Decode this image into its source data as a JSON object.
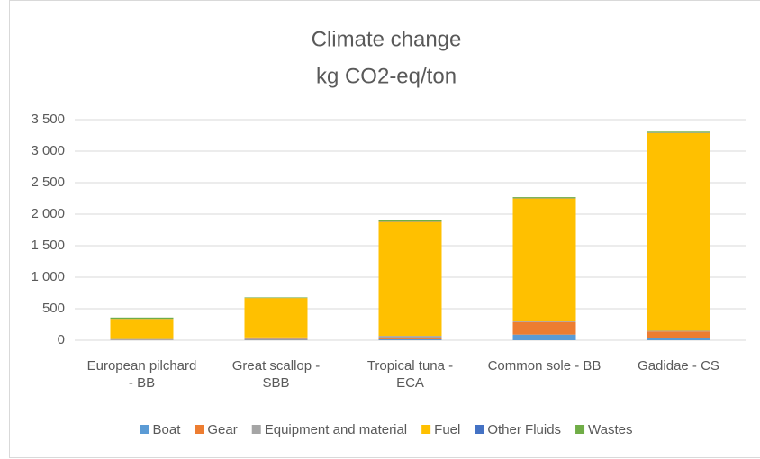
{
  "chart_data": {
    "type": "stacked_bar",
    "title": [
      "Climate change",
      "kg CO2-eq/ton"
    ],
    "categories": [
      "European pilchard - BB",
      "Great scallop - SBB",
      "Tropical tuna - ECA",
      "Common sole - BB",
      "Gadidae - CS"
    ],
    "series": [
      {
        "name": "Boat",
        "color": "#5b9bd5",
        "values": [
          5,
          10,
          15,
          90,
          40
        ]
      },
      {
        "name": "Gear",
        "color": "#ed7d31",
        "values": [
          5,
          10,
          20,
          200,
          100
        ]
      },
      {
        "name": "Equipment and material",
        "color": "#a5a5a5",
        "values": [
          10,
          25,
          35,
          10,
          10
        ]
      },
      {
        "name": "Fuel",
        "color": "#ffc000",
        "values": [
          320,
          625,
          1810,
          1950,
          3140
        ]
      },
      {
        "name": "Other Fluids",
        "color": "#4472c4",
        "values": [
          2,
          2,
          5,
          5,
          5
        ]
      },
      {
        "name": "Wastes",
        "color": "#70ad47",
        "values": [
          18,
          8,
          25,
          15,
          15
        ]
      }
    ],
    "ylim": [
      0,
      3500
    ],
    "yticks": [
      0,
      500,
      {
        "value": 1000,
        "label": "1 000"
      },
      {
        "value": 1500,
        "label": "1 500"
      },
      {
        "value": 2000,
        "label": "2 000"
      },
      {
        "value": 2500,
        "label": "2 500"
      },
      {
        "value": 3000,
        "label": "3 000"
      },
      {
        "value": 3500,
        "label": "3 500"
      }
    ],
    "grid": true,
    "legend": "bottom"
  }
}
